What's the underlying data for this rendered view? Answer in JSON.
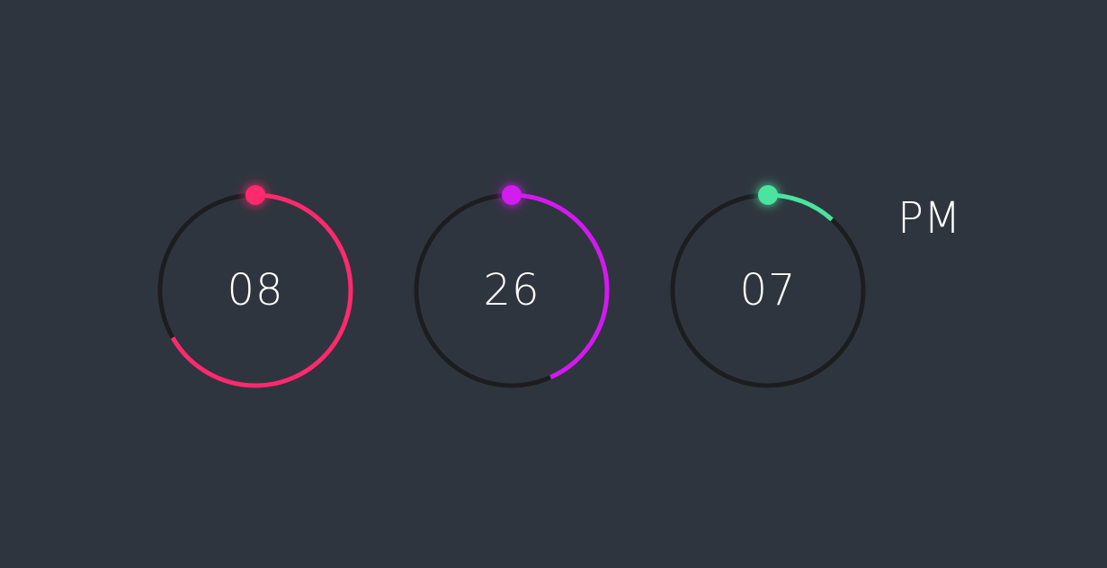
{
  "clock": {
    "hours": {
      "value": "08",
      "progress": 0.667,
      "color": "#ff2a6d"
    },
    "minutes": {
      "value": "26",
      "progress": 0.433,
      "color": "#d21af0"
    },
    "seconds": {
      "value": "07",
      "progress": 0.117,
      "color": "#4be3a0"
    },
    "meridiem": "PM",
    "track_color": "#1c1d20"
  }
}
